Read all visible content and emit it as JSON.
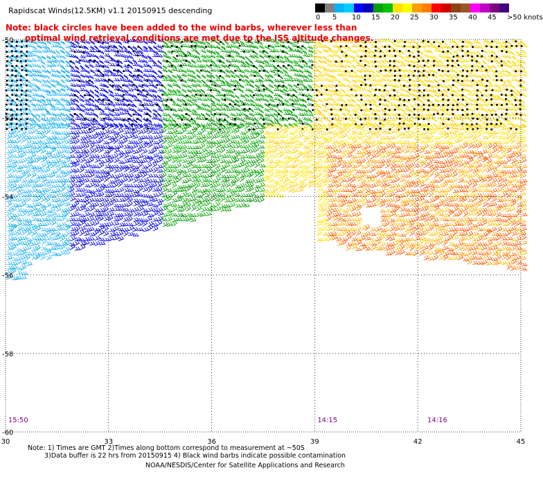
{
  "title": "Rapidscat Winds(12.5KM) v1.1 20150915 descending",
  "note_red": [
    "Note: black circles have been added to the wind barbs, wherever less than",
    "optimal wind retrieval conditions are met due to the ISS altitude changes."
  ],
  "speed_scale": {
    "colors": [
      "#000000",
      "#808080",
      "#00b4ff",
      "#00d0ff",
      "#0000ff",
      "#0000c0",
      "#00a000",
      "#00c000",
      "#ffe000",
      "#ffff00",
      "#ffa000",
      "#ff8000",
      "#ff0000",
      "#d00000",
      "#8b4513",
      "#a0522d",
      "#ff00ff",
      "#c000c0",
      "#800080",
      "#400080"
    ],
    "labels": [
      "0",
      "5",
      "10",
      "15",
      "20",
      "25",
      "30",
      "35",
      "40",
      "45",
      ">50 knots"
    ]
  },
  "map": {
    "lon_ticks": [
      "30",
      "33",
      "36",
      "39",
      "42",
      "45"
    ],
    "lat_ticks": [
      {
        "label": "-50",
        "value": -50
      },
      {
        "label": "-52",
        "value": -52
      },
      {
        "label": "-54",
        "value": -54
      },
      {
        "label": "-56",
        "value": -56
      },
      {
        "label": "-58",
        "value": -58
      },
      {
        "label": "-60",
        "value": -60
      }
    ],
    "time_labels": [
      {
        "text": "15:50",
        "lon": 30.2
      },
      {
        "text": "14:15",
        "lon": 39.2
      },
      {
        "text": "14:16",
        "lon": 42.4
      }
    ],
    "time_label_color": "#800080"
  },
  "footer": {
    "line1": "Note: 1) Times are GMT 2)Times along bottom correspond to measurement at ~50S",
    "line2": "3)Data buffer is 22 hrs from 20150915 4) Black wind barbs indicate possible contamination",
    "line3": "NOAA/NESDIS/Center for Satellite Applications and Research"
  }
}
